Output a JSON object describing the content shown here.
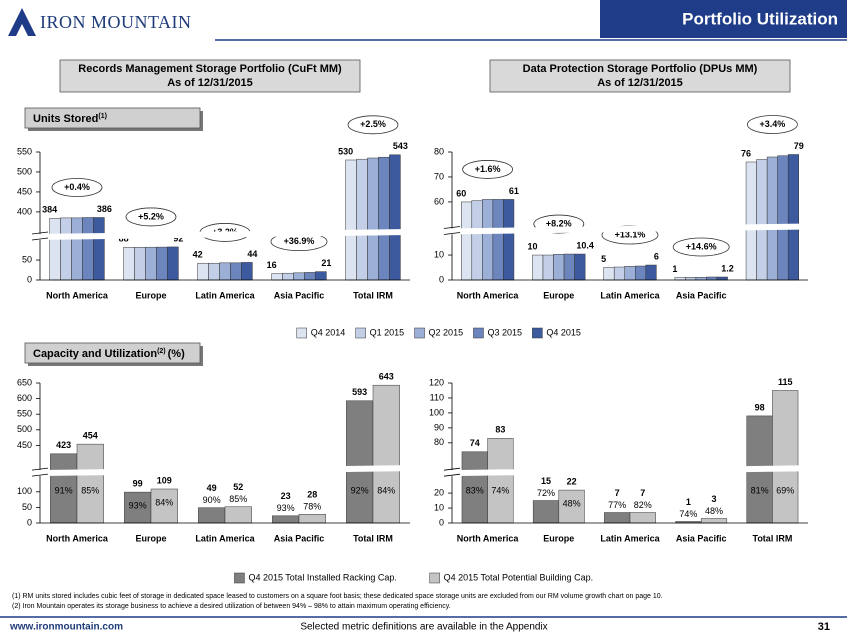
{
  "header": {
    "logo": "IRON MOUNTAIN",
    "title": "Portfolio Utilization"
  },
  "chart_data": [
    {
      "type": "bar",
      "title": "Records Management Storage Portfolio (CuFt MM)",
      "subtitle": "As of 12/31/2015",
      "section": "Units Stored",
      "section_note": "(1)",
      "categories": [
        "North America",
        "Europe",
        "Latin America",
        "Asia Pacific",
        "Total IRM"
      ],
      "series": [
        {
          "name": "Q4 2014",
          "color": "#dde4f1",
          "labels": true,
          "values": [
            384,
            88,
            42,
            16,
            530
          ]
        },
        {
          "name": "Q1 2015",
          "color": "#c3cfe7",
          "values": [
            385,
            88,
            42,
            17,
            532
          ]
        },
        {
          "name": "Q2 2015",
          "color": "#9cafd6",
          "values": [
            385,
            89,
            43,
            18,
            535
          ]
        },
        {
          "name": "Q3 2015",
          "color": "#6c85bd",
          "values": [
            386,
            90,
            43,
            19,
            537
          ]
        },
        {
          "name": "Q4 2015",
          "color": "#3d5a9f",
          "labels": true,
          "values": [
            386,
            92,
            44,
            21,
            543
          ]
        }
      ],
      "annotations": [
        "+0.4%",
        "+5.2%",
        "+3.2%",
        "+36.9%",
        "+2.5%"
      ],
      "ylim": [
        0,
        550
      ],
      "ybreak": [
        80,
        380
      ],
      "yticks": [
        0,
        50,
        400,
        450,
        500,
        550
      ]
    },
    {
      "type": "bar",
      "title": "Data Protection Storage Portfolio (DPUs MM)",
      "subtitle": "As of 12/31/2015",
      "categories": [
        "North America",
        "Europe",
        "Latin America",
        "Asia Pacific",
        null
      ],
      "series": [
        {
          "color": "#dde4f1",
          "labels": true,
          "values": [
            60,
            10,
            5,
            1,
            76
          ]
        },
        {
          "color": "#c3cfe7",
          "values": [
            60.5,
            10,
            5.2,
            1.1,
            77
          ]
        },
        {
          "color": "#9cafd6",
          "values": [
            61,
            10.3,
            5.5,
            1.1,
            78
          ]
        },
        {
          "color": "#6c85bd",
          "values": [
            61,
            10.4,
            5.6,
            1.2,
            78.5
          ]
        },
        {
          "color": "#3d5a9f",
          "labels": true,
          "values": [
            61,
            10.4,
            6,
            1.2,
            79
          ]
        }
      ],
      "annotations": [
        "+1.6%",
        "+8.2%",
        "+13.1%",
        "+14.6%",
        "+3.4%"
      ],
      "ylim": [
        0,
        80
      ],
      "ybreak": [
        15,
        55
      ],
      "yticks": [
        0,
        10,
        60,
        70,
        80
      ]
    },
    {
      "type": "bar",
      "section": "Capacity and Utilization",
      "section_note": "(2)",
      "section_unit": "(%)",
      "categories": [
        "North America",
        "Europe",
        "Latin America",
        "Asia Pacific",
        "Total IRM"
      ],
      "series": [
        {
          "name": "Q4 2015 Total Installed Racking Cap.",
          "color": "#7f7f7f",
          "labels": true,
          "values": [
            423,
            99,
            49,
            23,
            593
          ],
          "utilization": [
            "91%",
            "93%",
            "90%",
            "93%",
            "92%"
          ]
        },
        {
          "name": "Q4 2015 Total Potential Building Cap.",
          "color": "#c4c4c4",
          "labels": true,
          "values": [
            454,
            109,
            52,
            28,
            643
          ],
          "utilization": [
            "85%",
            "84%",
            "85%",
            "78%",
            "84%"
          ]
        }
      ],
      "ylim": [
        0,
        650
      ],
      "ybreak": [
        120,
        420
      ],
      "yticks": [
        0,
        50,
        100,
        450,
        500,
        550,
        600,
        650
      ]
    },
    {
      "type": "bar",
      "categories": [
        "North America",
        "Europe",
        "Latin America",
        "Asia Pacific",
        "Total IRM"
      ],
      "series": [
        {
          "color": "#7f7f7f",
          "labels": true,
          "values": [
            74,
            15,
            7,
            1,
            98
          ],
          "utilization": [
            "83%",
            "72%",
            "77%",
            "74%",
            "81%"
          ]
        },
        {
          "color": "#c4c4c4",
          "labels": true,
          "values": [
            83,
            22,
            7,
            3,
            115
          ],
          "utilization": [
            "74%",
            "48%",
            "82%",
            "48%",
            "69%"
          ]
        }
      ],
      "ylim": [
        0,
        120
      ],
      "ybreak": [
        25,
        72
      ],
      "yticks": [
        0,
        10,
        20,
        80,
        90,
        100,
        110,
        120
      ]
    }
  ],
  "footnotes": [
    "(1) RM units stored includes cubic feet of storage in dedicated space leased to customers on a square foot basis; these dedicated space storage units are excluded from our RM volume growth chart on page 10.",
    "(2) Iron Mountain operates its storage business to achieve a desired utilization of between 94% – 98% to attain maximum operating efficiency."
  ],
  "footer": {
    "url": "www.ironmountain.com",
    "note": "Selected metric definitions are available in the Appendix",
    "page": "31"
  }
}
